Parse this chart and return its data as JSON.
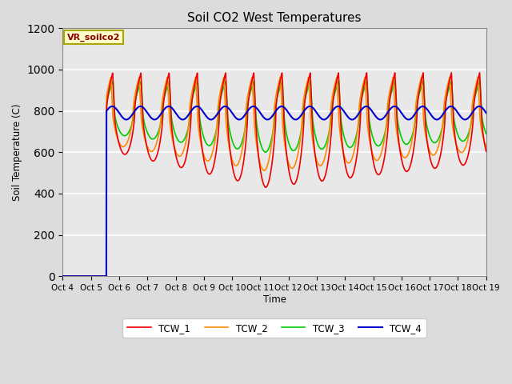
{
  "title": "Soil CO2 West Temperatures",
  "xlabel": "Time",
  "ylabel": "Soil Temperature (C)",
  "ylim": [
    0,
    1200
  ],
  "annotation_text": "VR_soilco2",
  "legend_labels": [
    "TCW_1",
    "TCW_2",
    "TCW_3",
    "TCW_4"
  ],
  "line_colors": [
    "#ee0000",
    "#ff8800",
    "#00cc00",
    "#0000cc"
  ],
  "background_color": "#e8e8e8",
  "x_tick_labels": [
    "Oct 4",
    "Oct 5",
    "Oct 6",
    "Oct 7",
    "Oct 8",
    "Oct 9",
    "Oct 10",
    "Oct 11",
    "Oct 12",
    "Oct 13",
    "Oct 14",
    "Oct 15",
    "Oct 16",
    "Oct 17",
    "Oct 18",
    "Oct 19"
  ],
  "grid_color": "#ffffff",
  "title_fontsize": 11,
  "fig_width": 6.4,
  "fig_height": 4.8,
  "fig_dpi": 100
}
